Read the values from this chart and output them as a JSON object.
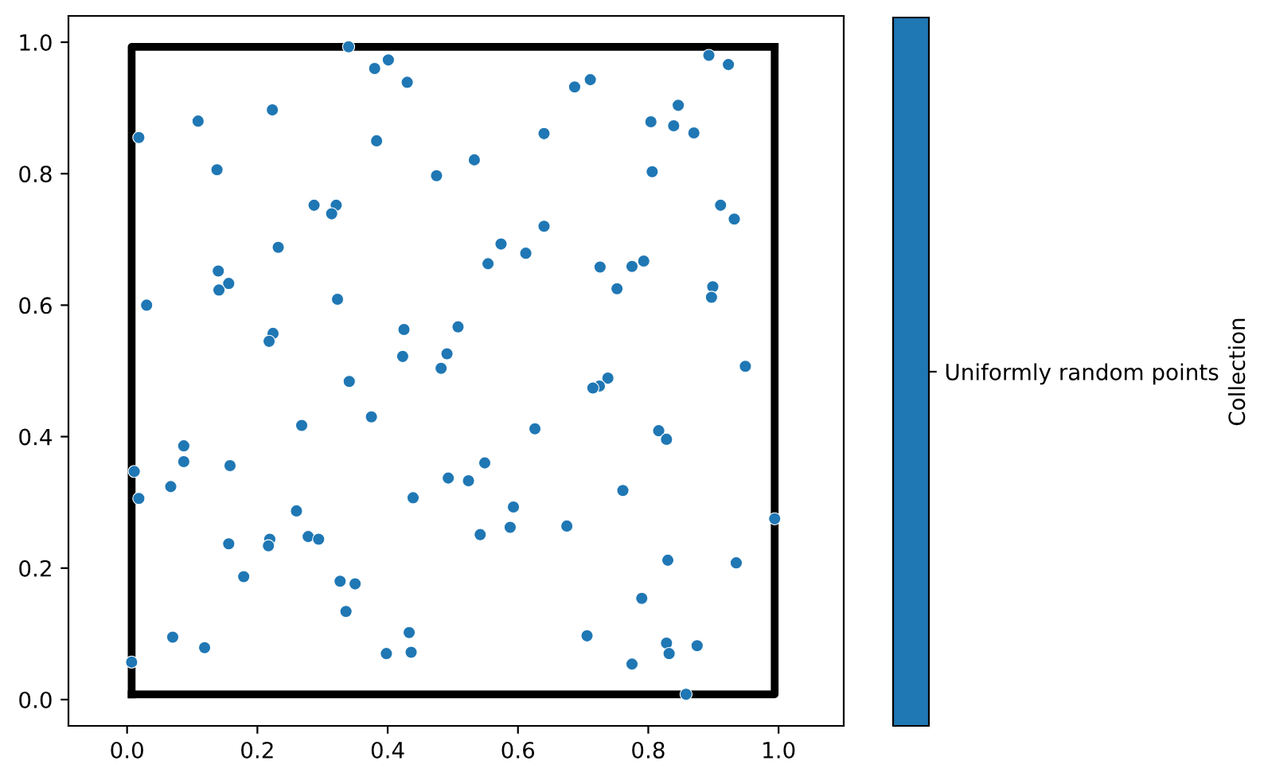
{
  "chart_data": {
    "type": "scatter",
    "clabel": "Collection",
    "xlim": [
      -0.09,
      1.1
    ],
    "ylim": [
      -0.04,
      1.04
    ],
    "xticks": [
      {
        "value": 0,
        "label": "0.0"
      },
      0.2,
      0.4,
      0.6,
      0.8,
      {
        "value": 1,
        "label": "1.0"
      }
    ],
    "yticks": [
      {
        "value": 0,
        "label": "0.0"
      },
      0.2,
      0.4,
      0.6,
      0.8,
      {
        "value": 1,
        "label": "1.0"
      }
    ],
    "series": [
      {
        "type": "line",
        "color": "#000000",
        "x": [
          0.007,
          0.994,
          0.994
        ],
        "values": [
          0.008,
          0.008,
          0.993
        ]
      },
      {
        "type": "line",
        "color": "#000000",
        "x": [
          0.994,
          0.007,
          0.007
        ],
        "values": [
          0.993,
          0.993,
          0.008
        ]
      },
      {
        "name": "Uniformly random points",
        "color": "#1f77b4",
        "marker": "circle",
        "x": [
          0.34,
          0.38,
          0.401,
          0.43,
          0.223,
          0.109,
          0.018,
          0.383,
          0.138,
          0.475,
          0.287,
          0.321,
          0.314,
          0.232,
          0.14,
          0.156,
          0.141,
          0.323,
          0.03,
          0.425,
          0.224,
          0.218,
          0.508,
          0.423,
          0.491,
          0.482,
          0.341,
          0.893,
          0.923,
          0.687,
          0.711,
          0.846,
          0.804,
          0.839,
          0.87,
          0.64,
          0.533,
          0.806,
          0.911,
          0.932,
          0.64,
          0.574,
          0.612,
          0.554,
          0.726,
          0.775,
          0.793,
          0.752,
          0.899,
          0.897,
          0.949,
          0.738,
          0.725,
          0.715,
          0.626,
          0.816,
          0.828,
          0.549,
          0.493,
          0.524,
          0.761,
          0.593,
          0.588,
          0.675,
          0.542,
          0.994,
          0.83,
          0.935,
          0.79,
          0.706,
          0.828,
          0.832,
          0.875,
          0.775,
          0.858,
          0.375,
          0.268,
          0.087,
          0.087,
          0.011,
          0.158,
          0.067,
          0.018,
          0.439,
          0.26,
          0.156,
          0.219,
          0.217,
          0.278,
          0.294,
          0.179,
          0.327,
          0.35,
          0.336,
          0.07,
          0.119,
          0.007,
          0.433,
          0.398,
          0.436
        ],
        "values": [
          0.993,
          0.96,
          0.973,
          0.939,
          0.897,
          0.88,
          0.855,
          0.85,
          0.806,
          0.797,
          0.752,
          0.752,
          0.739,
          0.688,
          0.652,
          0.633,
          0.623,
          0.609,
          0.6,
          0.563,
          0.557,
          0.545,
          0.567,
          0.522,
          0.526,
          0.504,
          0.484,
          0.98,
          0.966,
          0.932,
          0.943,
          0.904,
          0.879,
          0.873,
          0.862,
          0.861,
          0.821,
          0.803,
          0.752,
          0.731,
          0.72,
          0.693,
          0.679,
          0.663,
          0.658,
          0.659,
          0.667,
          0.625,
          0.628,
          0.612,
          0.507,
          0.489,
          0.477,
          0.474,
          0.412,
          0.409,
          0.396,
          0.36,
          0.337,
          0.333,
          0.318,
          0.293,
          0.262,
          0.264,
          0.251,
          0.275,
          0.212,
          0.208,
          0.154,
          0.097,
          0.086,
          0.07,
          0.082,
          0.054,
          0.008,
          0.43,
          0.417,
          0.386,
          0.362,
          0.347,
          0.356,
          0.324,
          0.306,
          0.307,
          0.287,
          0.237,
          0.244,
          0.234,
          0.248,
          0.244,
          0.187,
          0.18,
          0.176,
          0.134,
          0.095,
          0.079,
          0.057,
          0.102,
          0.07,
          0.072
        ]
      }
    ]
  }
}
